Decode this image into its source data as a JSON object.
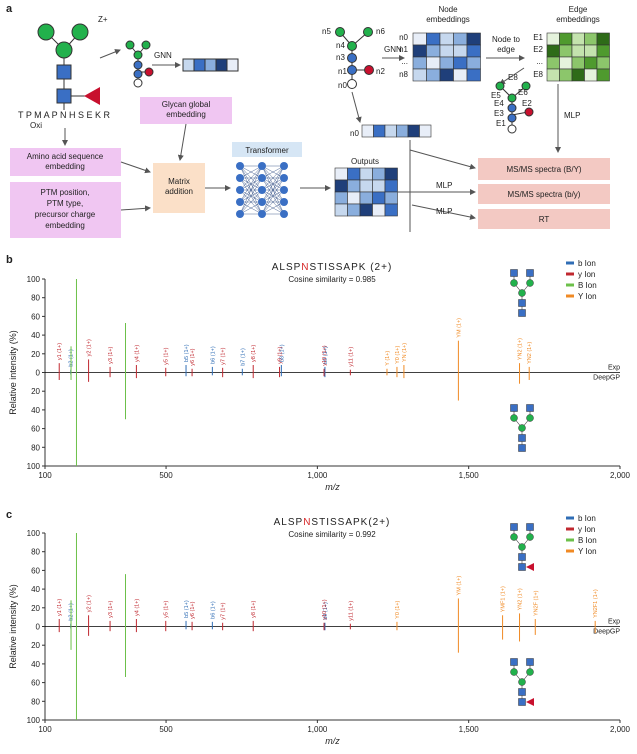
{
  "diagram": {
    "panel": "a",
    "glycan_charge": "Z+",
    "oxi": "Oxi",
    "peptide": "T P M A P N H S E K R",
    "gnn_1": "GNN",
    "glycan_embedding": [
      "Glycan global",
      "embedding"
    ],
    "aa_embedding": [
      "Amino acid sequence",
      "embedding"
    ],
    "ptm_embedding": [
      "PTM position,",
      "PTM type,",
      "precursor charge",
      "embedding"
    ],
    "matrix_addition": [
      "Matrix",
      "addition"
    ],
    "transformer": "Transformer",
    "outputs": "Outputs",
    "mlp_1": "MLP",
    "mlp_2": "MLP",
    "mlp_3": "MLP",
    "out_upper": "MS/MS spectra (B/Y)",
    "out_lower": "MS/MS spectra (b/y)",
    "out_rt": "RT",
    "node_embeddings_title": [
      "Node",
      "embeddings"
    ],
    "gnn_2": "GNN",
    "node_to_edge": [
      "Node to",
      "edge"
    ],
    "edge_embeddings_title": [
      "Edge",
      "embeddings"
    ],
    "node_labels": [
      "n5",
      "n6",
      "n4",
      "n3",
      "n1",
      "n2",
      "n0"
    ],
    "node_rows": [
      "n0",
      "n1",
      "...",
      "n8"
    ],
    "edge_rows": [
      "E1",
      "E2",
      "...",
      "E8"
    ],
    "edge_graph_labels": [
      "E8",
      "E6",
      "E5",
      "E4",
      "E3",
      "E2",
      "E1"
    ],
    "n0_bar": "n0"
  },
  "chart_data": [
    {
      "type": "mirror-spectrum",
      "panel": "b",
      "title_parts": [
        "ALSP",
        "N",
        "STISSAPK (2+)"
      ],
      "title_highlight_color": "#d62728",
      "subtitle": "Cosine similarity = 0.985",
      "xlabel": "m/z",
      "ylabel": "Relative intensity (%)",
      "top_label": "Exp",
      "bottom_label": "DeepGP",
      "legend": "upper right",
      "xlim": [
        100,
        2000
      ],
      "xticks": [
        100,
        500,
        {
          "value": 1000,
          "label": "1,000"
        },
        {
          "value": 1500,
          "label": "1,500"
        },
        {
          "value": 2000,
          "label": "2,000"
        }
      ],
      "ylim": [
        -100,
        100
      ],
      "yticks": [
        {
          "value": -100,
          "label": "100"
        },
        {
          "value": -80,
          "label": "80"
        },
        {
          "value": -60,
          "label": "60"
        },
        {
          "value": -40,
          "label": "40"
        },
        {
          "value": -20,
          "label": "20"
        },
        0,
        20,
        40,
        60,
        80,
        100
      ],
      "series": [
        {
          "name": "b Ion",
          "color": "#2f6db5",
          "x": [
            185,
            566,
            653,
            752,
            881,
            1025
          ],
          "values": [
            3,
            8,
            6,
            4,
            8,
            6
          ],
          "predicted": [
            -2,
            -4,
            -3,
            -3,
            -4,
            -5
          ],
          "labels": [
            "b2 (1+)",
            "b5 (1+)",
            "b6 (1+)",
            "b7 (1+)",
            "b8 (1+)",
            "b9 (1+)"
          ]
        },
        {
          "name": "y Ion",
          "color": "#c0282f",
          "x": [
            147,
            244,
            315,
            402,
            499,
            586,
            687,
            788,
            875,
            1022,
            1109
          ],
          "values": [
            10,
            14,
            6,
            8,
            5,
            4,
            5,
            8,
            6,
            4,
            3
          ],
          "predicted": [
            -8,
            -10,
            -5,
            -6,
            -4,
            -4,
            -5,
            -6,
            -5,
            -4,
            -3
          ],
          "labels": [
            "y1 (1+)",
            "y2 (1+)",
            "y3 (1+)",
            "y4 (1+)",
            "y5 (1+)",
            "y6 (1+)",
            "y7 (1+)",
            "y8 (1+)",
            "y9 (1+)",
            "y10 (1+)",
            "y11 (1+)"
          ]
        },
        {
          "name": "B Ion",
          "color": "#6cc04a",
          "x": [
            186,
            204,
            366
          ],
          "values": [
            28,
            100,
            53
          ],
          "predicted": [
            -8,
            -100,
            -50
          ]
        },
        {
          "name": "Y Ion",
          "color": "#f08a24",
          "x": [
            1230,
            1263,
            1286,
            1466,
            1668,
            1700
          ],
          "values": [
            4,
            6,
            8,
            34,
            10,
            6
          ],
          "predicted": [
            -3,
            -5,
            -6,
            -30,
            -12,
            -8
          ],
          "labels": [
            "Y (1+)",
            "Y0 (1+)",
            "YN (1+)",
            "YM (1+)",
            "YN2 (1+)",
            "YN2 (1+)"
          ]
        }
      ]
    },
    {
      "type": "mirror-spectrum",
      "panel": "c",
      "title_parts": [
        "ALSP",
        "N",
        "STISSAPK(2+)"
      ],
      "title_highlight_color": "#d62728",
      "subtitle": "Cosine similarity = 0.992",
      "xlabel": "m/z",
      "ylabel": "Relative intensity (%)",
      "top_label": "Exp",
      "bottom_label": "DeepGP",
      "legend": "upper right",
      "xlim": [
        100,
        2000
      ],
      "xticks": [
        100,
        500,
        {
          "value": 1000,
          "label": "1,000"
        },
        {
          "value": 1500,
          "label": "1,500"
        },
        {
          "value": 2000,
          "label": "2,000"
        }
      ],
      "ylim": [
        -100,
        100
      ],
      "yticks": [
        {
          "value": -100,
          "label": "100"
        },
        {
          "value": -80,
          "label": "80"
        },
        {
          "value": -60,
          "label": "60"
        },
        {
          "value": -40,
          "label": "40"
        },
        {
          "value": -20,
          "label": "20"
        },
        0,
        20,
        40,
        60,
        80,
        100
      ],
      "series": [
        {
          "name": "b Ion",
          "color": "#2f6db5",
          "x": [
            185,
            566,
            653,
            1025
          ],
          "values": [
            3,
            6,
            5,
            4
          ],
          "predicted": [
            -2,
            -3,
            -3,
            -4
          ],
          "labels": [
            "b2 (1+)",
            "b5 (1+)",
            "b6 (1+)",
            "b9 (1+)"
          ]
        },
        {
          "name": "y Ion",
          "color": "#c0282f",
          "x": [
            147,
            244,
            315,
            402,
            499,
            586,
            687,
            788,
            1022,
            1109
          ],
          "values": [
            8,
            12,
            6,
            8,
            6,
            5,
            4,
            6,
            4,
            3
          ],
          "predicted": [
            -6,
            -10,
            -5,
            -6,
            -5,
            -4,
            -4,
            -5,
            -4,
            -3
          ],
          "labels": [
            "y1 (1+)",
            "y2 (1+)",
            "y3 (1+)",
            "y4 (1+)",
            "y5 (1+)",
            "y6 (1+)",
            "y7 (1+)",
            "y8 (1+)",
            "y10 (1+)",
            "y11 (1+)"
          ]
        },
        {
          "name": "B Ion",
          "color": "#6cc04a",
          "x": [
            186,
            204,
            366
          ],
          "values": [
            28,
            100,
            56
          ],
          "predicted": [
            -25,
            -100,
            -54
          ]
        },
        {
          "name": "Y Ion",
          "color": "#f08a24",
          "x": [
            1263,
            1466,
            1612,
            1668,
            1720,
            1918
          ],
          "values": [
            5,
            30,
            12,
            14,
            8,
            6
          ],
          "predicted": [
            -4,
            -28,
            -14,
            -16,
            -9,
            -7
          ],
          "labels": [
            "Y0 (1+)",
            "YM (1+)",
            "YMF1 (1+)",
            "YN2 (1+)",
            "YN2F (1+)",
            "YN2F1 (1+)"
          ]
        }
      ]
    }
  ]
}
